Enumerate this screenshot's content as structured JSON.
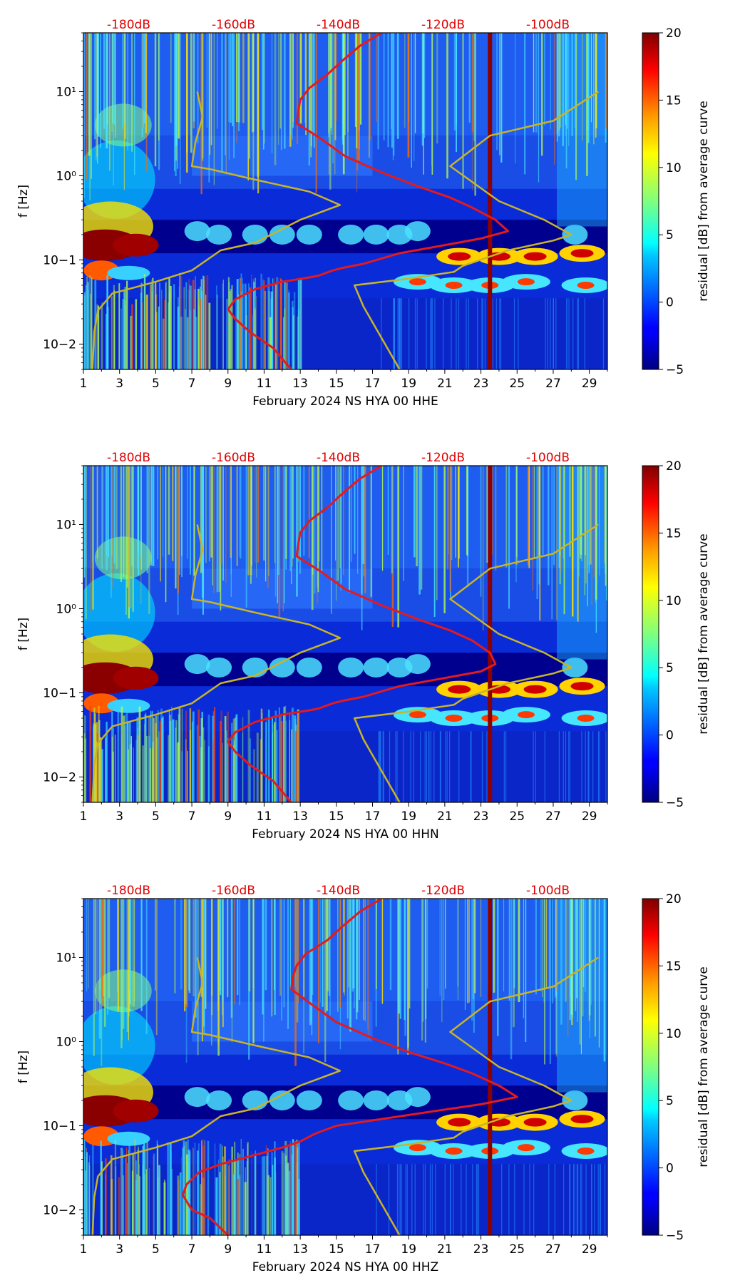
{
  "chart_data": [
    {
      "type": "heatmap",
      "xlabel": "February 2024 NS HYA 00 HHE",
      "ylabel": "f [Hz]",
      "x_ticks": [
        "1",
        "3",
        "5",
        "7",
        "9",
        "11",
        "13",
        "15",
        "17",
        "19",
        "21",
        "23",
        "25",
        "27",
        "29"
      ],
      "xlim": [
        1,
        30
      ],
      "ylim": [
        0.005,
        50
      ],
      "y_scale": "log",
      "y_ticks": [
        "10−2",
        "10−1",
        "10⁰",
        "10¹"
      ],
      "top_ticks": [
        "-180dB",
        "-160dB",
        "-140dB",
        "-120dB",
        "-100dB"
      ],
      "colorbar": {
        "label": "residual [dB] from average curve",
        "min": -5,
        "max": 20,
        "ticks": [
          "−5",
          "0",
          "5",
          "10",
          "15",
          "20"
        ]
      },
      "vertical_line_x": 23.5,
      "series": [
        {
          "color": "#e41a1c",
          "points": [
            [
              12.5,
              0.005
            ],
            [
              11.5,
              0.009
            ],
            [
              10.2,
              0.014
            ],
            [
              9.4,
              0.02
            ],
            [
              9.0,
              0.026
            ],
            [
              9.4,
              0.034
            ],
            [
              10.5,
              0.045
            ],
            [
              12,
              0.055
            ],
            [
              13.5,
              0.062
            ],
            [
              14,
              0.065
            ],
            [
              14.8,
              0.075
            ],
            [
              15.3,
              0.08
            ],
            [
              16.5,
              0.09
            ],
            [
              18.5,
              0.12
            ],
            [
              21,
              0.15
            ],
            [
              23,
              0.18
            ],
            [
              24.5,
              0.22
            ],
            [
              23.8,
              0.3
            ],
            [
              22.5,
              0.42
            ],
            [
              21.3,
              0.55
            ],
            [
              19.5,
              0.75
            ],
            [
              17.5,
              1.1
            ],
            [
              15.5,
              1.7
            ],
            [
              14.1,
              2.8
            ],
            [
              12.8,
              4.2
            ],
            [
              12.9,
              6
            ],
            [
              13,
              8
            ],
            [
              13.5,
              11
            ],
            [
              14.5,
              16
            ],
            [
              15.3,
              23
            ],
            [
              16.3,
              35
            ],
            [
              17.5,
              50
            ]
          ]
        },
        {
          "color": "#c8b428",
          "points": [
            [
              1.5,
              0.005
            ],
            [
              1.6,
              0.014
            ],
            [
              1.8,
              0.025
            ],
            [
              2.6,
              0.04
            ],
            [
              5,
              0.055
            ],
            [
              7,
              0.075
            ],
            [
              8.6,
              0.13
            ],
            [
              10.5,
              0.16
            ],
            [
              13,
              0.3
            ],
            [
              15.2,
              0.45
            ],
            [
              13.5,
              0.65
            ],
            [
              10.5,
              0.9
            ],
            [
              8,
              1.2
            ],
            [
              7,
              1.3
            ],
            [
              7.2,
              2.5
            ],
            [
              7.6,
              5
            ],
            [
              7.3,
              10
            ]
          ]
        },
        {
          "color": "#c8b428",
          "points": [
            [
              18.5,
              0.005
            ],
            [
              16.5,
              0.028
            ],
            [
              16,
              0.05
            ],
            [
              19,
              0.06
            ],
            [
              21.5,
              0.072
            ],
            [
              22,
              0.085
            ],
            [
              24.5,
              0.13
            ],
            [
              27,
              0.17
            ],
            [
              28,
              0.2
            ],
            [
              26.5,
              0.3
            ],
            [
              24,
              0.5
            ],
            [
              21.3,
              1.3
            ],
            [
              23.5,
              3
            ],
            [
              27,
              4.5
            ],
            [
              29.5,
              10
            ]
          ]
        }
      ]
    },
    {
      "type": "heatmap",
      "xlabel": "February 2024 NS HYA 00 HHN",
      "ylabel": "f [Hz]",
      "x_ticks": [
        "1",
        "3",
        "5",
        "7",
        "9",
        "11",
        "13",
        "15",
        "17",
        "19",
        "21",
        "23",
        "25",
        "27",
        "29"
      ],
      "xlim": [
        1,
        30
      ],
      "ylim": [
        0.005,
        50
      ],
      "y_scale": "log",
      "y_ticks": [
        "10−2",
        "10−1",
        "10⁰",
        "10¹"
      ],
      "top_ticks": [
        "-180dB",
        "-160dB",
        "-140dB",
        "-120dB",
        "-100dB"
      ],
      "colorbar": {
        "label": "residual [dB] from average curve",
        "min": -5,
        "max": 20,
        "ticks": [
          "−5",
          "0",
          "5",
          "10",
          "15",
          "20"
        ]
      },
      "vertical_line_x": 23.5,
      "series": [
        {
          "color": "#e41a1c",
          "points": [
            [
              12.5,
              0.005
            ],
            [
              11.5,
              0.009
            ],
            [
              10.2,
              0.014
            ],
            [
              9.4,
              0.02
            ],
            [
              9.0,
              0.026
            ],
            [
              9.4,
              0.034
            ],
            [
              10.5,
              0.045
            ],
            [
              12,
              0.055
            ],
            [
              13.5,
              0.062
            ],
            [
              14,
              0.065
            ],
            [
              14.8,
              0.075
            ],
            [
              15.3,
              0.08
            ],
            [
              16.5,
              0.09
            ],
            [
              18.5,
              0.12
            ],
            [
              21,
              0.15
            ],
            [
              23,
              0.18
            ],
            [
              23.8,
              0.22
            ],
            [
              23.5,
              0.3
            ],
            [
              22.5,
              0.42
            ],
            [
              21.3,
              0.55
            ],
            [
              19.5,
              0.75
            ],
            [
              17.5,
              1.1
            ],
            [
              15.5,
              1.7
            ],
            [
              14.1,
              2.8
            ],
            [
              12.8,
              4.2
            ],
            [
              12.9,
              6
            ],
            [
              13,
              8
            ],
            [
              13.5,
              11
            ],
            [
              14.5,
              16
            ],
            [
              15.3,
              23
            ],
            [
              16.3,
              35
            ],
            [
              17.5,
              50
            ]
          ]
        },
        {
          "color": "#c8b428",
          "points": [
            [
              1.5,
              0.005
            ],
            [
              1.6,
              0.014
            ],
            [
              1.8,
              0.025
            ],
            [
              2.6,
              0.04
            ],
            [
              5,
              0.055
            ],
            [
              7,
              0.075
            ],
            [
              8.6,
              0.13
            ],
            [
              10.5,
              0.16
            ],
            [
              13,
              0.3
            ],
            [
              15.2,
              0.45
            ],
            [
              13.5,
              0.65
            ],
            [
              10.5,
              0.9
            ],
            [
              8,
              1.2
            ],
            [
              7,
              1.3
            ],
            [
              7.2,
              2.5
            ],
            [
              7.6,
              5
            ],
            [
              7.3,
              10
            ]
          ]
        },
        {
          "color": "#c8b428",
          "points": [
            [
              18.5,
              0.005
            ],
            [
              16.5,
              0.028
            ],
            [
              16,
              0.05
            ],
            [
              19,
              0.06
            ],
            [
              21.5,
              0.072
            ],
            [
              22,
              0.085
            ],
            [
              24.5,
              0.13
            ],
            [
              27,
              0.17
            ],
            [
              28,
              0.2
            ],
            [
              26.5,
              0.3
            ],
            [
              24,
              0.5
            ],
            [
              21.3,
              1.3
            ],
            [
              23.5,
              3
            ],
            [
              27,
              4.5
            ],
            [
              29.5,
              10
            ]
          ]
        }
      ]
    },
    {
      "type": "heatmap",
      "xlabel": "February 2024 NS HYA 00 HHZ",
      "ylabel": "f [Hz]",
      "x_ticks": [
        "1",
        "3",
        "5",
        "7",
        "9",
        "11",
        "13",
        "15",
        "17",
        "19",
        "21",
        "23",
        "25",
        "27",
        "29"
      ],
      "xlim": [
        1,
        30
      ],
      "ylim": [
        0.005,
        50
      ],
      "y_scale": "log",
      "y_ticks": [
        "10−2",
        "10−1",
        "10⁰",
        "10¹"
      ],
      "top_ticks": [
        "-180dB",
        "-160dB",
        "-140dB",
        "-120dB",
        "-100dB"
      ],
      "colorbar": {
        "label": "residual [dB] from average curve",
        "min": -5,
        "max": 20,
        "ticks": [
          "−5",
          "0",
          "5",
          "10",
          "15",
          "20"
        ]
      },
      "vertical_line_x": 23.5,
      "series": [
        {
          "color": "#e41a1c",
          "points": [
            [
              9,
              0.005
            ],
            [
              8,
              0.008
            ],
            [
              7,
              0.01
            ],
            [
              6.5,
              0.015
            ],
            [
              6.7,
              0.02
            ],
            [
              7.4,
              0.028
            ],
            [
              8.6,
              0.035
            ],
            [
              10.5,
              0.045
            ],
            [
              12,
              0.055
            ],
            [
              13,
              0.065
            ],
            [
              13.8,
              0.08
            ],
            [
              15,
              0.1
            ],
            [
              17.5,
              0.12
            ],
            [
              20.5,
              0.15
            ],
            [
              23,
              0.18
            ],
            [
              25,
              0.22
            ],
            [
              24,
              0.3
            ],
            [
              22.5,
              0.42
            ],
            [
              21,
              0.55
            ],
            [
              19,
              0.75
            ],
            [
              17,
              1.1
            ],
            [
              15,
              1.7
            ],
            [
              13.6,
              2.8
            ],
            [
              12.5,
              4.2
            ],
            [
              12.6,
              6
            ],
            [
              12.8,
              8
            ],
            [
              13.3,
              11
            ],
            [
              14.5,
              16
            ],
            [
              15.3,
              23
            ],
            [
              16.3,
              35
            ],
            [
              17.5,
              50
            ]
          ]
        },
        {
          "color": "#c8b428",
          "points": [
            [
              1.5,
              0.005
            ],
            [
              1.6,
              0.014
            ],
            [
              1.8,
              0.025
            ],
            [
              2.6,
              0.04
            ],
            [
              5,
              0.055
            ],
            [
              7,
              0.075
            ],
            [
              8.6,
              0.13
            ],
            [
              10.5,
              0.16
            ],
            [
              13,
              0.3
            ],
            [
              15.2,
              0.45
            ],
            [
              13.5,
              0.65
            ],
            [
              10.5,
              0.9
            ],
            [
              8,
              1.2
            ],
            [
              7,
              1.3
            ],
            [
              7.2,
              2.5
            ],
            [
              7.6,
              5
            ],
            [
              7.3,
              10
            ]
          ]
        },
        {
          "color": "#c8b428",
          "points": [
            [
              18.5,
              0.005
            ],
            [
              16.5,
              0.028
            ],
            [
              16,
              0.05
            ],
            [
              19,
              0.06
            ],
            [
              21.5,
              0.072
            ],
            [
              22,
              0.085
            ],
            [
              24.5,
              0.13
            ],
            [
              27,
              0.17
            ],
            [
              28,
              0.2
            ],
            [
              26.5,
              0.3
            ],
            [
              24,
              0.5
            ],
            [
              21.3,
              1.3
            ],
            [
              23.5,
              3
            ],
            [
              27,
              4.5
            ],
            [
              29.5,
              10
            ]
          ]
        }
      ]
    }
  ]
}
